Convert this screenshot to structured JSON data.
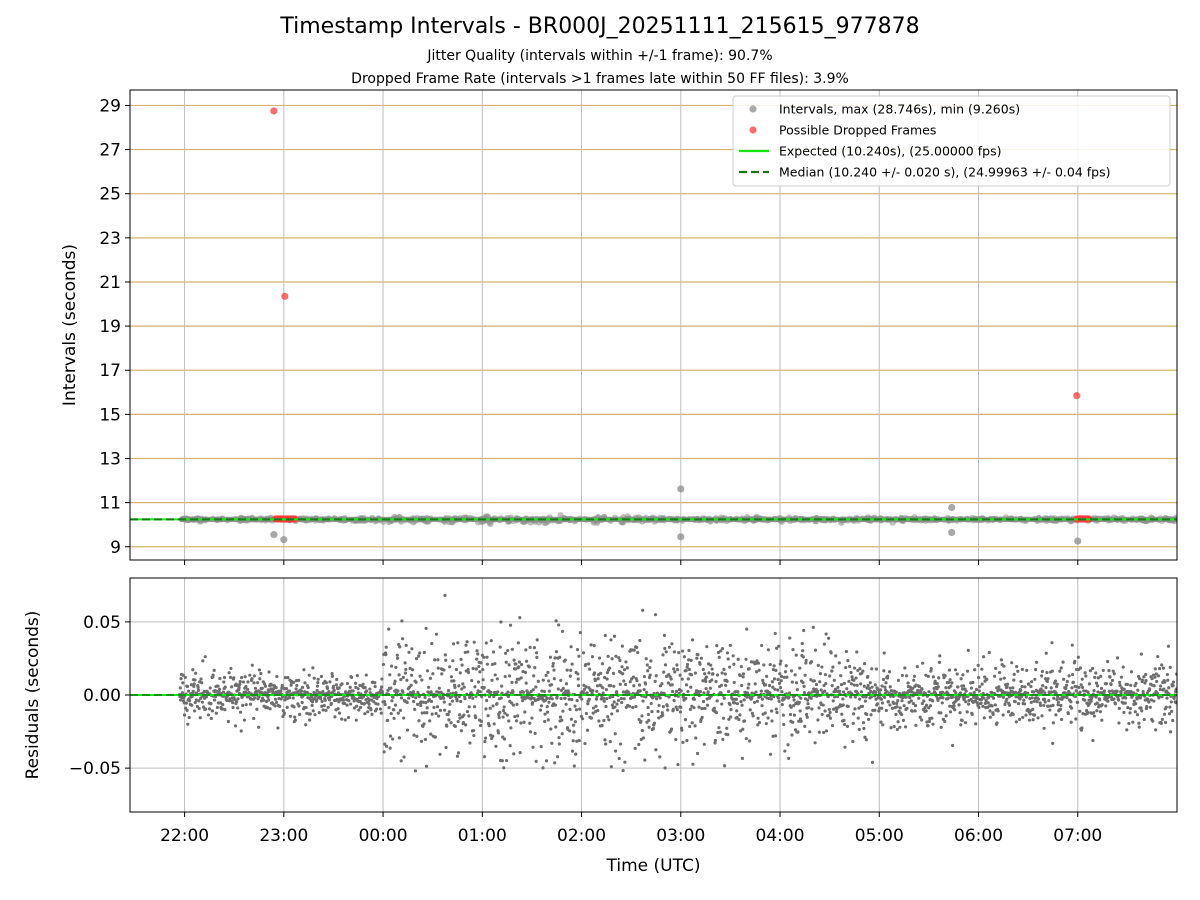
{
  "chart_data": {
    "title": "Timestamp Intervals - BR000J_20251111_215615_977878",
    "subtitle_jitter": "Jitter Quality (intervals within +/-1 frame): 90.7%",
    "subtitle_dropped": "Dropped Frame Rate (intervals >1 frames late within 50 FF files): 3.9%",
    "xlabel": "Time (UTC)",
    "x_range_hours": [
      -0.55,
      10.0
    ],
    "x_ticks": [
      {
        "h": 0,
        "label": "22:00"
      },
      {
        "h": 1,
        "label": "23:00"
      },
      {
        "h": 2,
        "label": "00:00"
      },
      {
        "h": 3,
        "label": "01:00"
      },
      {
        "h": 4,
        "label": "02:00"
      },
      {
        "h": 5,
        "label": "03:00"
      },
      {
        "h": 6,
        "label": "04:00"
      },
      {
        "h": 7,
        "label": "05:00"
      },
      {
        "h": 8,
        "label": "06:00"
      },
      {
        "h": 9,
        "label": "07:00"
      }
    ],
    "top": {
      "type": "scatter",
      "ylabel": "Intervals (seconds)",
      "ylim": [
        8.4,
        29.7
      ],
      "y_ticks": [
        9,
        11,
        13,
        15,
        17,
        19,
        21,
        23,
        25,
        27,
        29
      ],
      "expected": 10.24,
      "median": 10.24,
      "dense_band": {
        "center": 10.24,
        "half_width": 0.12,
        "x_start": -0.05,
        "x_end": 10.0
      },
      "outliers": [
        {
          "x": 0.9,
          "y": 9.55
        },
        {
          "x": 1.0,
          "y": 9.32
        },
        {
          "x": 5.0,
          "y": 11.62
        },
        {
          "x": 5.0,
          "y": 9.45
        },
        {
          "x": 7.73,
          "y": 10.78
        },
        {
          "x": 7.73,
          "y": 9.65
        },
        {
          "x": 9.0,
          "y": 9.26
        }
      ],
      "dropped": [
        {
          "x": 0.9,
          "y": 28.75
        },
        {
          "x": 1.01,
          "y": 20.35
        },
        {
          "x": 8.99,
          "y": 15.85
        }
      ],
      "dropped_clusters": [
        {
          "x_start": 0.92,
          "x_end": 1.12,
          "y": 10.26
        },
        {
          "x_start": 8.99,
          "x_end": 9.12,
          "y": 10.26
        }
      ],
      "legend": [
        {
          "label": "Intervals, max (28.746s), min (9.260s)",
          "kind": "dot",
          "color": "#8c8c8c"
        },
        {
          "label": "Possible Dropped Frames",
          "kind": "dot",
          "color": "#ff3b3b"
        },
        {
          "label": "Expected (10.240s), (25.00000 fps)",
          "kind": "line",
          "color": "#14e614"
        },
        {
          "label": "Median (10.240 +/- 0.020 s), (24.99963 +/- 0.04 fps)",
          "kind": "dashed",
          "color": "#117a11"
        }
      ]
    },
    "bottom": {
      "type": "scatter",
      "ylabel": "Residuals (seconds)",
      "ylim": [
        -0.08,
        0.08
      ],
      "y_ticks": [
        {
          "v": 0.05,
          "label": "0.05"
        },
        {
          "v": 0.0,
          "label": "0.00"
        },
        {
          "v": -0.05,
          "label": "−0.05"
        }
      ],
      "n_points": 2800,
      "noise": {
        "start": 0.02,
        "mid": 0.035,
        "end": 0.022,
        "segments": [
          [
            -0.05,
            2.0,
            0.015
          ],
          [
            2.0,
            5.5,
            0.04
          ],
          [
            5.5,
            7.0,
            0.032
          ],
          [
            7.0,
            10.0,
            0.02
          ]
        ]
      },
      "zero_line": 0.0
    },
    "colors": {
      "interval": "#8c8c8c",
      "dropped": "#ff3b3b",
      "expected": "#14e614",
      "median": "#117a11",
      "residual": "#6e6e6e",
      "grid_h_top": "#d2b46e",
      "grid": "#bebebe"
    }
  }
}
